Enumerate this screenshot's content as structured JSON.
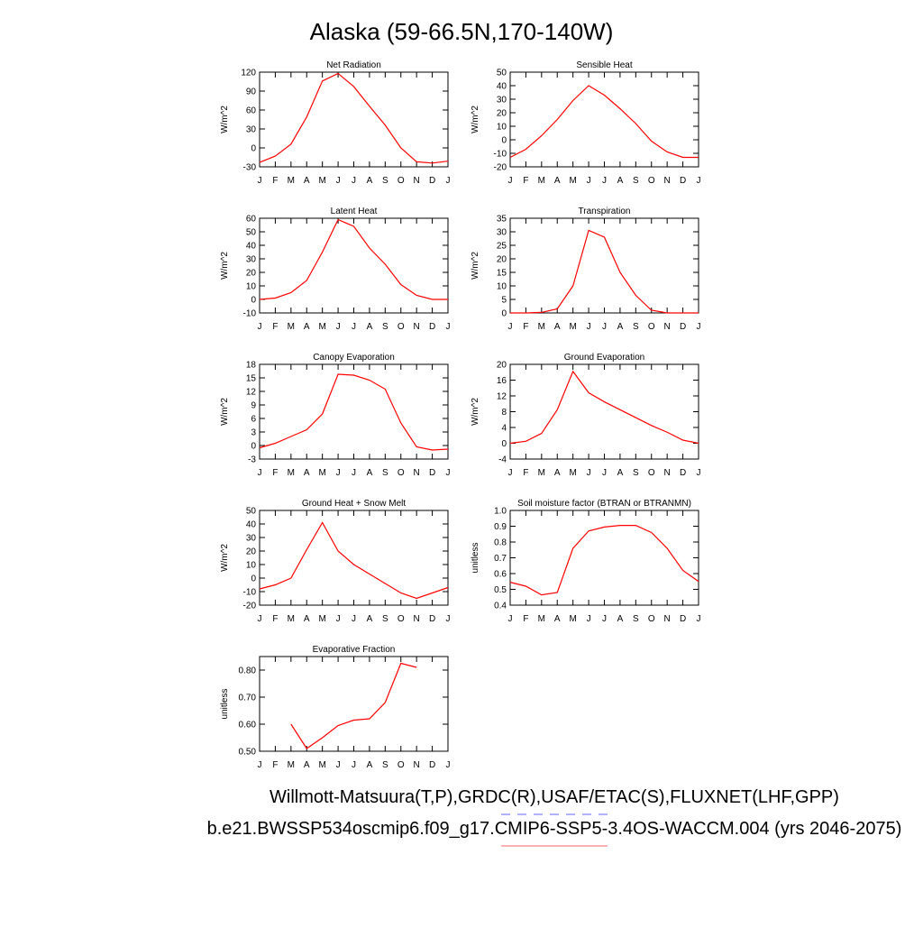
{
  "title": "Alaska (59-66.5N,170-140W)",
  "footer": [
    "Willmott-Matsuura(T,P),GRDC(R),USAF/ETAC(S),FLUXNET(LHF,GPP)",
    "b.e21.BWSSP534oscmip6.f09_g17.CMIP6-SSP5-3.4OS-WACCM.004 (yrs 2046-2075)"
  ],
  "chart_data": [
    {
      "type": "line",
      "title": "Net Radiation",
      "y_label": "W/m^2",
      "categories": [
        "J",
        "F",
        "M",
        "A",
        "M",
        "J",
        "J",
        "A",
        "S",
        "O",
        "N",
        "D",
        "J"
      ],
      "color": "#ff0000",
      "values": [
        -23,
        -13,
        6,
        49,
        106,
        118,
        97,
        66,
        36,
        0,
        -22,
        -24,
        -21
      ],
      "ylim": [
        -30,
        120
      ],
      "yticks": [
        -30,
        0,
        30,
        60,
        90,
        120
      ]
    },
    {
      "type": "line",
      "title": "Sensible Heat",
      "y_label": "W/m^2",
      "categories": [
        "J",
        "F",
        "M",
        "A",
        "M",
        "J",
        "J",
        "A",
        "S",
        "O",
        "N",
        "D",
        "J"
      ],
      "color": "#ff0000",
      "values": [
        -13,
        -7,
        3,
        15,
        29,
        40,
        33,
        23,
        12,
        -1,
        -9,
        -13,
        -13
      ],
      "ylim": [
        -20,
        50
      ],
      "yticks": [
        -20,
        -10,
        0,
        10,
        20,
        30,
        40,
        50
      ]
    },
    {
      "type": "line",
      "title": "Latent Heat",
      "y_label": "W/m^2",
      "categories": [
        "J",
        "F",
        "M",
        "A",
        "M",
        "J",
        "J",
        "A",
        "S",
        "O",
        "N",
        "D",
        "J"
      ],
      "color": "#ff0000",
      "values": [
        0,
        1,
        5,
        14,
        35,
        59,
        54,
        38,
        26,
        11,
        3,
        0,
        0
      ],
      "ylim": [
        -10,
        60
      ],
      "yticks": [
        -10,
        0,
        10,
        20,
        30,
        40,
        50,
        60
      ]
    },
    {
      "type": "line",
      "title": "Transpiration",
      "y_label": "W/m^2",
      "categories": [
        "J",
        "F",
        "M",
        "A",
        "M",
        "J",
        "J",
        "A",
        "S",
        "O",
        "N",
        "D",
        "J"
      ],
      "color": "#ff0000",
      "values": [
        0,
        0,
        0.2,
        1.5,
        10,
        30.5,
        28,
        15,
        6.5,
        1,
        0,
        0,
        0
      ],
      "ylim": [
        0,
        35
      ],
      "yticks": [
        0,
        5,
        10,
        15,
        20,
        25,
        30,
        35
      ]
    },
    {
      "type": "line",
      "title": "Canopy Evaporation",
      "y_label": "W/m^2",
      "categories": [
        "J",
        "F",
        "M",
        "A",
        "M",
        "J",
        "J",
        "A",
        "S",
        "O",
        "N",
        "D",
        "J"
      ],
      "color": "#ff0000",
      "values": [
        -0.5,
        0.5,
        2,
        3.5,
        7,
        15.8,
        15.6,
        14.5,
        12.5,
        5,
        -0.3,
        -1,
        -0.8
      ],
      "ylim": [
        -3,
        18
      ],
      "yticks": [
        -3,
        0,
        3,
        6,
        9,
        12,
        15,
        18
      ]
    },
    {
      "type": "line",
      "title": "Ground Evaporation",
      "y_label": "W/m^2",
      "categories": [
        "J",
        "F",
        "M",
        "A",
        "M",
        "J",
        "J",
        "A",
        "S",
        "O",
        "N",
        "D",
        "J"
      ],
      "color": "#ff0000",
      "values": [
        0,
        0.5,
        2.5,
        8.5,
        18.2,
        12.8,
        10.5,
        8.5,
        6.5,
        4.5,
        2.8,
        0.8,
        0
      ],
      "ylim": [
        -4,
        20
      ],
      "yticks": [
        -4,
        0,
        4,
        8,
        12,
        16,
        20
      ]
    },
    {
      "type": "line",
      "title": "Ground Heat + Snow Melt",
      "y_label": "W/m^2",
      "categories": [
        "J",
        "F",
        "M",
        "A",
        "M",
        "J",
        "J",
        "A",
        "S",
        "O",
        "N",
        "D",
        "J"
      ],
      "color": "#ff0000",
      "values": [
        -8,
        -5,
        0,
        21,
        41,
        20,
        10,
        3,
        -4,
        -11,
        -15,
        -11,
        -7
      ],
      "ylim": [
        -20,
        50
      ],
      "yticks": [
        -20,
        -10,
        0,
        10,
        20,
        30,
        40,
        50
      ]
    },
    {
      "type": "line",
      "title": "Soil moisture factor (BTRAN or BTRANMN)",
      "y_label": "unitless",
      "categories": [
        "J",
        "F",
        "M",
        "A",
        "M",
        "J",
        "J",
        "A",
        "S",
        "O",
        "N",
        "D",
        "J"
      ],
      "color": "#ff0000",
      "values": [
        0.545,
        0.52,
        0.465,
        0.48,
        0.76,
        0.87,
        0.895,
        0.905,
        0.905,
        0.86,
        0.76,
        0.62,
        0.55
      ],
      "ylim": [
        0.4,
        1.0
      ],
      "yticks": [
        0.4,
        0.5,
        0.6,
        0.7,
        0.8,
        0.9,
        {
          "value": 1.0,
          "label": "1.0"
        }
      ]
    },
    {
      "type": "line",
      "title": "Evaporative Fraction",
      "y_label": "unitless",
      "categories": [
        "J",
        "F",
        "M",
        "A",
        "M",
        "J",
        "J",
        "A",
        "S",
        "O",
        "N",
        "D",
        "J"
      ],
      "color": "#ff0000",
      "values": [
        null,
        null,
        0.6,
        0.51,
        0.55,
        0.595,
        0.615,
        0.62,
        0.68,
        0.825,
        0.81,
        null,
        null
      ],
      "ylim": [
        0.5,
        0.85
      ],
      "yticks": [
        {
          "value": 0.5,
          "label": "0.50"
        },
        {
          "value": 0.6,
          "label": "0.60"
        },
        {
          "value": 0.7,
          "label": "0.70"
        },
        {
          "value": 0.8,
          "label": "0.80"
        }
      ]
    }
  ]
}
